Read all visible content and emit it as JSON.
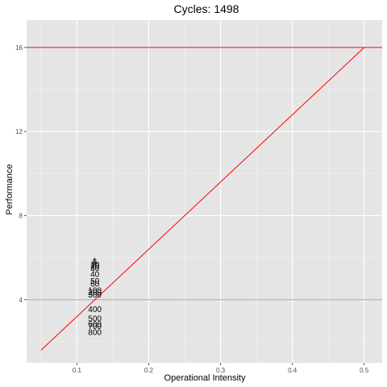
{
  "chart_data": {
    "type": "scatter",
    "title": "Cycles:  1498",
    "xlabel": "Operational Intensity",
    "ylabel": "Performance",
    "xlim": [
      0.03,
      0.525
    ],
    "ylim": [
      1.0,
      17.3
    ],
    "x_ticks": [
      0.1,
      0.2,
      0.3,
      0.4,
      0.5
    ],
    "x_tick_labels": [
      "0.1",
      "0.2",
      "0.3",
      "0.4",
      "0.5"
    ],
    "y_ticks": [
      4,
      8,
      12,
      16
    ],
    "y_tick_labels": [
      "4",
      "8",
      "12",
      "16"
    ],
    "grid": true,
    "background": "#e5e5e5",
    "roofline_color": "#ff0000",
    "hline_color": "#a6a6a6",
    "roof_horizontal": {
      "y": 16
    },
    "roof_diagonal": {
      "x": [
        0.05,
        0.5
      ],
      "y": [
        1.6,
        16
      ]
    },
    "reference_hline": {
      "y": 4
    },
    "points": [
      {
        "label": "1",
        "x": 0.125,
        "y": 5.85
      },
      {
        "label": "5",
        "x": 0.125,
        "y": 5.78
      },
      {
        "label": "10",
        "x": 0.125,
        "y": 5.68
      },
      {
        "label": "20",
        "x": 0.125,
        "y": 5.6
      },
      {
        "label": "30",
        "x": 0.125,
        "y": 5.5
      },
      {
        "label": "40",
        "x": 0.125,
        "y": 5.22
      },
      {
        "label": "50",
        "x": 0.125,
        "y": 4.9
      },
      {
        "label": "60",
        "x": 0.125,
        "y": 4.75
      },
      {
        "label": "100",
        "x": 0.125,
        "y": 4.45
      },
      {
        "label": "200",
        "x": 0.125,
        "y": 4.35
      },
      {
        "label": "300",
        "x": 0.125,
        "y": 4.25
      },
      {
        "label": "400",
        "x": 0.125,
        "y": 3.55
      },
      {
        "label": "500",
        "x": 0.125,
        "y": 3.1
      },
      {
        "label": "600",
        "x": 0.125,
        "y": 2.85
      },
      {
        "label": "700",
        "x": 0.125,
        "y": 2.75
      },
      {
        "label": "800",
        "x": 0.125,
        "y": 2.45
      }
    ]
  }
}
